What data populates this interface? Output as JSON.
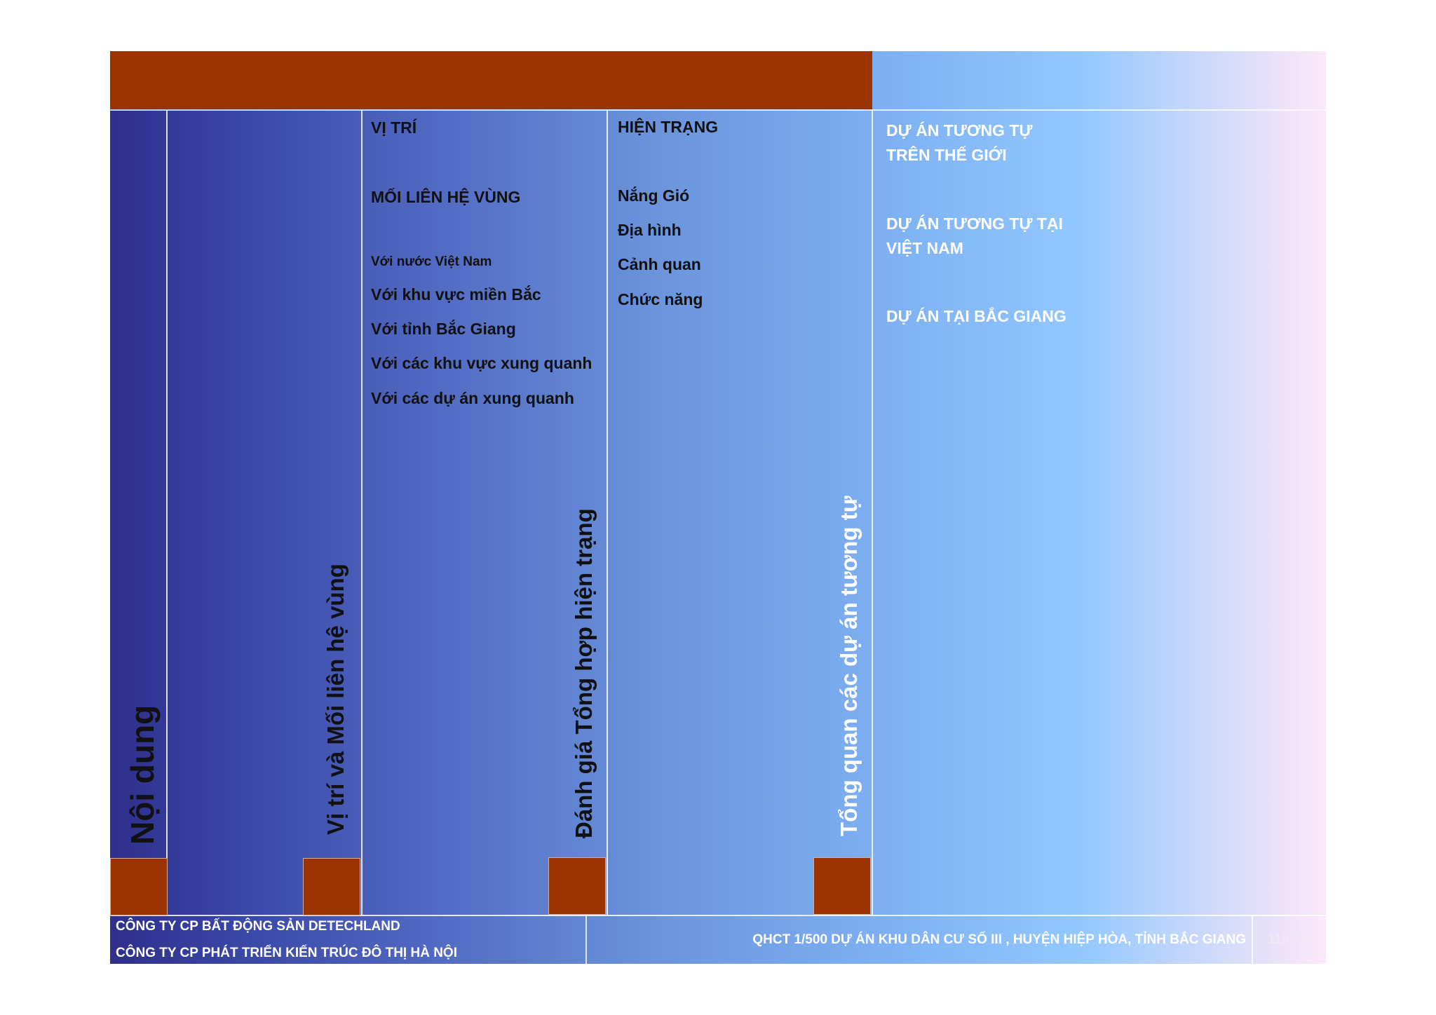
{
  "columns": {
    "col1_title": "Nội dung",
    "col2_title": "Vị trí và Mối liên hệ vùng",
    "col3_title": "Đánh giá Tổng hợp hiện trạng",
    "col4_title": "Tổng quan các dự án tương tự"
  },
  "location": {
    "heading": "VỊ TRÍ",
    "subheading": "MỐI LIÊN HỆ VÙNG",
    "items": [
      "Với nước Việt Nam",
      "Với khu vực miền Bắc",
      "Với tỉnh Bắc Giang",
      "Với các khu vực xung quanh",
      "Với các dự án xung quanh"
    ]
  },
  "status": {
    "heading": "HIỆN TRẠNG",
    "items": [
      "Nắng Gió",
      "Địa hình",
      "Cảnh quan",
      "Chức năng"
    ]
  },
  "similar_projects": {
    "items": [
      [
        "DỰ ÁN TƯƠNG TỰ",
        "TRÊN THẾ GIỚI"
      ],
      [
        "DỰ ÁN TƯƠNG TỰ TẠI",
        "VIỆT NAM"
      ],
      [
        "DỰ ÁN TẠI BẮC GIANG"
      ]
    ]
  },
  "footer": {
    "company1": "CÔNG TY CP BẤT ĐỘNG SẢN DETECHLAND",
    "company2": "CÔNG TY CP PHÁT TRIỂN KIẾN TRÚC ĐÔ THỊ HÀ NỘI",
    "project": "QHCT 1/500 DỰ ÁN KHU DÂN CƯ SỐ III , HUYỆN HIỆP HÒA, TỈNH BẮC GIANG",
    "code": "110928"
  },
  "colors": {
    "accent": "#9b3400",
    "gradient_start": "#2f2e8c",
    "gradient_end": "#fde8fa"
  }
}
